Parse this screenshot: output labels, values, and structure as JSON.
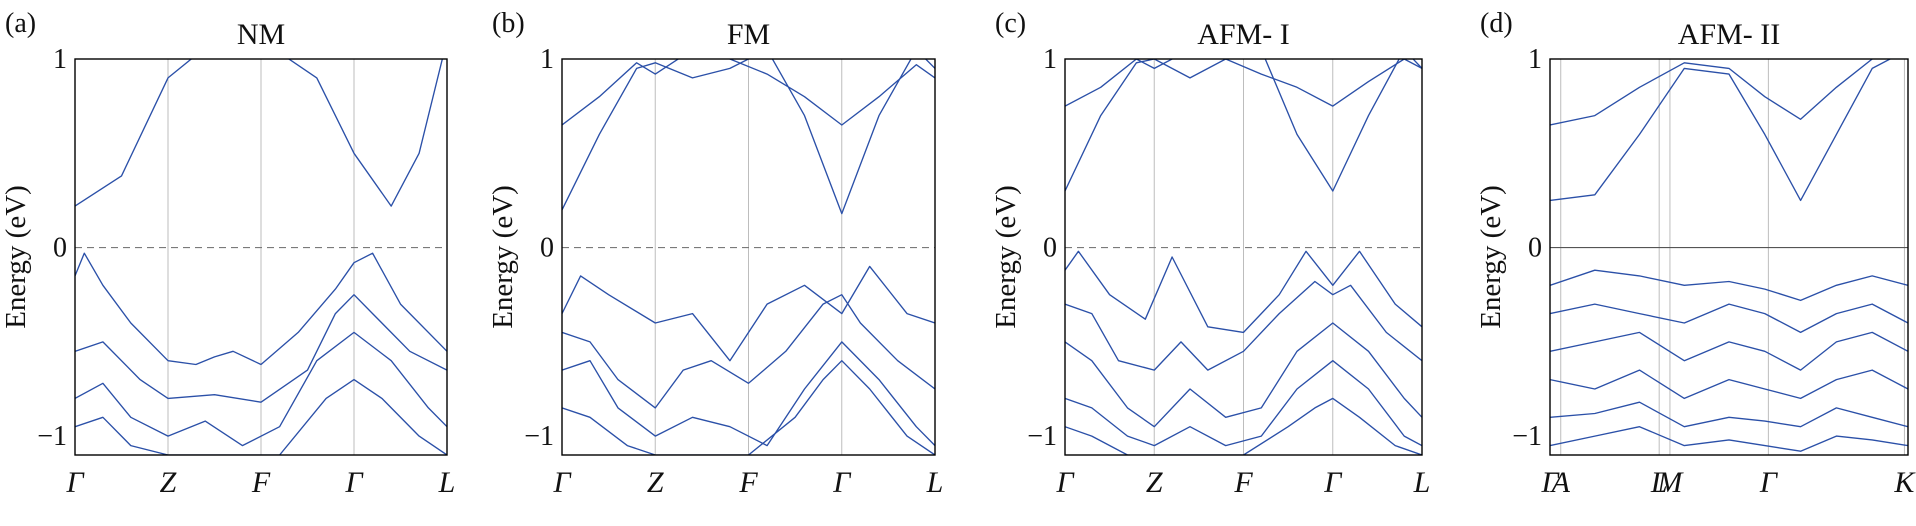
{
  "chart_data": [
    {
      "type": "line",
      "panel_label": "(a)",
      "title": "NM",
      "ylabel": "Energy (eV)",
      "ylim": [
        -1.1,
        1
      ],
      "yticks": [
        "1",
        "0",
        "−1"
      ],
      "xticks": [
        "Γ",
        "Z",
        "F",
        "Γ",
        "L"
      ],
      "fermi_level_style": "dashed",
      "series": [
        {
          "x": [
            0,
            0.5,
            1,
            1.5,
            2,
            2.6,
            3,
            3.4,
            3.7,
            4
          ],
          "y": [
            0.22,
            0.38,
            0.9,
            1.1,
            1.1,
            0.9,
            0.5,
            0.22,
            0.5,
            1.1
          ]
        },
        {
          "x": [
            0,
            0.1,
            0.3,
            0.6,
            1,
            1.3,
            1.5,
            1.7,
            2,
            2.4,
            2.8,
            3,
            3.2,
            3.5,
            4
          ],
          "y": [
            -0.15,
            -0.03,
            -0.2,
            -0.4,
            -0.6,
            -0.62,
            -0.58,
            -0.55,
            -0.62,
            -0.45,
            -0.22,
            -0.08,
            -0.03,
            -0.3,
            -0.55
          ]
        },
        {
          "x": [
            0,
            0.3,
            0.7,
            1,
            1.5,
            2,
            2.5,
            2.8,
            3,
            3.2,
            3.6,
            4
          ],
          "y": [
            -0.55,
            -0.5,
            -0.7,
            -0.8,
            -0.78,
            -0.82,
            -0.65,
            -0.35,
            -0.25,
            -0.35,
            -0.55,
            -0.65
          ]
        },
        {
          "x": [
            0,
            0.3,
            0.6,
            1,
            1.4,
            1.8,
            2.2,
            2.6,
            3,
            3.4,
            3.8,
            4
          ],
          "y": [
            -0.8,
            -0.72,
            -0.9,
            -1.0,
            -0.92,
            -1.05,
            -0.95,
            -0.6,
            -0.45,
            -0.6,
            -0.85,
            -0.95
          ]
        },
        {
          "x": [
            0,
            0.3,
            0.6,
            1,
            1.6,
            2.2,
            2.7,
            3,
            3.3,
            3.7,
            4
          ],
          "y": [
            -0.95,
            -0.9,
            -1.05,
            -1.1,
            -1.1,
            -1.1,
            -0.8,
            -0.7,
            -0.8,
            -1.0,
            -1.1
          ]
        }
      ]
    },
    {
      "type": "line",
      "panel_label": "(b)",
      "title": "FM",
      "ylabel": "Energy (eV)",
      "ylim": [
        -1.1,
        1
      ],
      "yticks": [
        "1",
        "0",
        "−1"
      ],
      "xticks": [
        "Γ",
        "Z",
        "F",
        "Γ",
        "L"
      ],
      "fermi_level_style": "dashed",
      "series": [
        {
          "x": [
            0,
            0.4,
            0.8,
            1,
            1.4,
            1.8,
            2.2,
            2.6,
            3,
            3.4,
            3.8,
            4
          ],
          "y": [
            0.2,
            0.6,
            0.95,
            0.98,
            0.9,
            0.95,
            1.05,
            0.7,
            0.18,
            0.7,
            1.05,
            0.95
          ]
        },
        {
          "x": [
            0,
            0.4,
            0.8,
            1,
            1.4,
            1.8,
            2.2,
            2.6,
            3,
            3.4,
            3.8,
            4
          ],
          "y": [
            0.65,
            0.8,
            0.98,
            0.92,
            1.05,
            1.0,
            0.92,
            0.8,
            0.65,
            0.8,
            0.97,
            0.9
          ]
        },
        {
          "x": [
            0,
            0.2,
            0.5,
            1,
            1.4,
            1.8,
            2.2,
            2.6,
            3,
            3.3,
            3.7,
            4
          ],
          "y": [
            -0.35,
            -0.15,
            -0.25,
            -0.4,
            -0.35,
            -0.6,
            -0.3,
            -0.2,
            -0.35,
            -0.1,
            -0.35,
            -0.4
          ]
        },
        {
          "x": [
            0,
            0.3,
            0.6,
            1,
            1.3,
            1.6,
            2,
            2.4,
            2.8,
            3,
            3.2,
            3.6,
            4
          ],
          "y": [
            -0.45,
            -0.5,
            -0.7,
            -0.85,
            -0.65,
            -0.6,
            -0.72,
            -0.55,
            -0.3,
            -0.25,
            -0.4,
            -0.6,
            -0.75
          ]
        },
        {
          "x": [
            0,
            0.3,
            0.6,
            1,
            1.4,
            1.8,
            2.2,
            2.6,
            3,
            3.4,
            3.8,
            4
          ],
          "y": [
            -0.65,
            -0.6,
            -0.85,
            -1.0,
            -0.9,
            -0.95,
            -1.05,
            -0.75,
            -0.5,
            -0.7,
            -0.95,
            -1.05
          ]
        },
        {
          "x": [
            0,
            0.3,
            0.7,
            1,
            1.5,
            2,
            2.5,
            2.8,
            3,
            3.3,
            3.7,
            4
          ],
          "y": [
            -0.85,
            -0.9,
            -1.05,
            -1.1,
            -1.1,
            -1.1,
            -0.9,
            -0.7,
            -0.6,
            -0.75,
            -1.0,
            -1.1
          ]
        }
      ]
    },
    {
      "type": "line",
      "panel_label": "(c)",
      "title": "AFM- I",
      "ylabel": "Energy (eV)",
      "ylim": [
        -1.1,
        1
      ],
      "yticks": [
        "1",
        "0",
        "−1"
      ],
      "xticks": [
        "Γ",
        "Z",
        "F",
        "Γ",
        "L"
      ],
      "fermi_level_style": "dashed",
      "series": [
        {
          "x": [
            0,
            0.4,
            0.8,
            1,
            1.4,
            1.8,
            2.2,
            2.6,
            3,
            3.4,
            3.8,
            4
          ],
          "y": [
            0.3,
            0.7,
            0.98,
            1.0,
            0.9,
            1.0,
            1.05,
            0.6,
            0.3,
            0.7,
            1.05,
            0.95
          ]
        },
        {
          "x": [
            0,
            0.4,
            0.8,
            1,
            1.4,
            1.8,
            2.2,
            2.6,
            3,
            3.4,
            3.8,
            4
          ],
          "y": [
            0.75,
            0.85,
            1.0,
            0.95,
            1.05,
            1.0,
            0.92,
            0.85,
            0.75,
            0.88,
            1.0,
            0.95
          ]
        },
        {
          "x": [
            0,
            0.15,
            0.5,
            0.9,
            1.2,
            1.6,
            2,
            2.4,
            2.7,
            3,
            3.3,
            3.7,
            4
          ],
          "y": [
            -0.12,
            -0.02,
            -0.25,
            -0.38,
            -0.05,
            -0.42,
            -0.45,
            -0.25,
            -0.02,
            -0.2,
            -0.02,
            -0.3,
            -0.42
          ]
        },
        {
          "x": [
            0,
            0.3,
            0.6,
            1,
            1.3,
            1.6,
            2,
            2.4,
            2.8,
            3,
            3.2,
            3.6,
            4
          ],
          "y": [
            -0.3,
            -0.35,
            -0.6,
            -0.65,
            -0.5,
            -0.65,
            -0.55,
            -0.35,
            -0.18,
            -0.25,
            -0.2,
            -0.45,
            -0.6
          ]
        },
        {
          "x": [
            0,
            0.3,
            0.7,
            1,
            1.4,
            1.8,
            2.2,
            2.6,
            3,
            3.4,
            3.8,
            4
          ],
          "y": [
            -0.5,
            -0.6,
            -0.85,
            -0.95,
            -0.75,
            -0.9,
            -0.85,
            -0.55,
            -0.4,
            -0.55,
            -0.8,
            -0.9
          ]
        },
        {
          "x": [
            0,
            0.3,
            0.7,
            1,
            1.4,
            1.8,
            2.2,
            2.6,
            3,
            3.4,
            3.8,
            4
          ],
          "y": [
            -0.8,
            -0.85,
            -1.0,
            -1.05,
            -0.95,
            -1.05,
            -1.0,
            -0.75,
            -0.6,
            -0.75,
            -1.0,
            -1.05
          ]
        },
        {
          "x": [
            0,
            0.3,
            0.7,
            1,
            1.5,
            2,
            2.5,
            2.8,
            3,
            3.3,
            3.7,
            4
          ],
          "y": [
            -0.95,
            -1.0,
            -1.1,
            -1.1,
            -1.1,
            -1.1,
            -0.95,
            -0.85,
            -0.8,
            -0.9,
            -1.05,
            -1.1
          ]
        }
      ]
    },
    {
      "type": "line",
      "panel_label": "(d)",
      "title": "AFM- II",
      "ylabel": "Energy (eV)",
      "ylim": [
        -1.1,
        1
      ],
      "yticks": [
        "1",
        "0",
        "−1"
      ],
      "xticks": [
        "Γ",
        "A",
        "L",
        "M",
        "Γ",
        "K"
      ],
      "fermi_level_style": "solid",
      "series": [
        {
          "x": [
            0,
            0.5,
            1.0,
            1.5,
            2.0,
            2.4,
            2.8,
            3.2,
            3.6,
            4.0
          ],
          "y": [
            0.25,
            0.28,
            0.6,
            0.95,
            0.92,
            0.6,
            0.25,
            0.6,
            0.95,
            1.05
          ]
        },
        {
          "x": [
            0,
            0.5,
            1.0,
            1.5,
            2.0,
            2.4,
            2.8,
            3.2,
            3.6,
            4.0
          ],
          "y": [
            0.65,
            0.7,
            0.85,
            0.98,
            0.95,
            0.8,
            0.68,
            0.85,
            1.0,
            1.05
          ]
        },
        {
          "x": [
            0,
            0.5,
            1.0,
            1.5,
            2.0,
            2.4,
            2.8,
            3.2,
            3.6,
            4.0
          ],
          "y": [
            -0.2,
            -0.12,
            -0.15,
            -0.2,
            -0.18,
            -0.22,
            -0.28,
            -0.2,
            -0.15,
            -0.2
          ]
        },
        {
          "x": [
            0,
            0.5,
            1.0,
            1.5,
            2.0,
            2.4,
            2.8,
            3.2,
            3.6,
            4.0
          ],
          "y": [
            -0.35,
            -0.3,
            -0.35,
            -0.4,
            -0.3,
            -0.35,
            -0.45,
            -0.35,
            -0.3,
            -0.4
          ]
        },
        {
          "x": [
            0,
            0.5,
            1.0,
            1.5,
            2.0,
            2.4,
            2.8,
            3.2,
            3.6,
            4.0
          ],
          "y": [
            -0.55,
            -0.5,
            -0.45,
            -0.6,
            -0.5,
            -0.55,
            -0.65,
            -0.5,
            -0.45,
            -0.55
          ]
        },
        {
          "x": [
            0,
            0.5,
            1.0,
            1.5,
            2.0,
            2.4,
            2.8,
            3.2,
            3.6,
            4.0
          ],
          "y": [
            -0.7,
            -0.75,
            -0.65,
            -0.8,
            -0.7,
            -0.75,
            -0.8,
            -0.7,
            -0.65,
            -0.75
          ]
        },
        {
          "x": [
            0,
            0.5,
            1.0,
            1.5,
            2.0,
            2.4,
            2.8,
            3.2,
            3.6,
            4.0
          ],
          "y": [
            -0.9,
            -0.88,
            -0.82,
            -0.95,
            -0.9,
            -0.92,
            -0.95,
            -0.85,
            -0.9,
            -0.95
          ]
        },
        {
          "x": [
            0,
            0.5,
            1.0,
            1.5,
            2.0,
            2.4,
            2.8,
            3.2,
            3.6,
            4.0
          ],
          "y": [
            -1.05,
            -1.0,
            -0.95,
            -1.05,
            -1.02,
            -1.05,
            -1.08,
            -1.0,
            -1.02,
            -1.05
          ]
        }
      ]
    }
  ]
}
